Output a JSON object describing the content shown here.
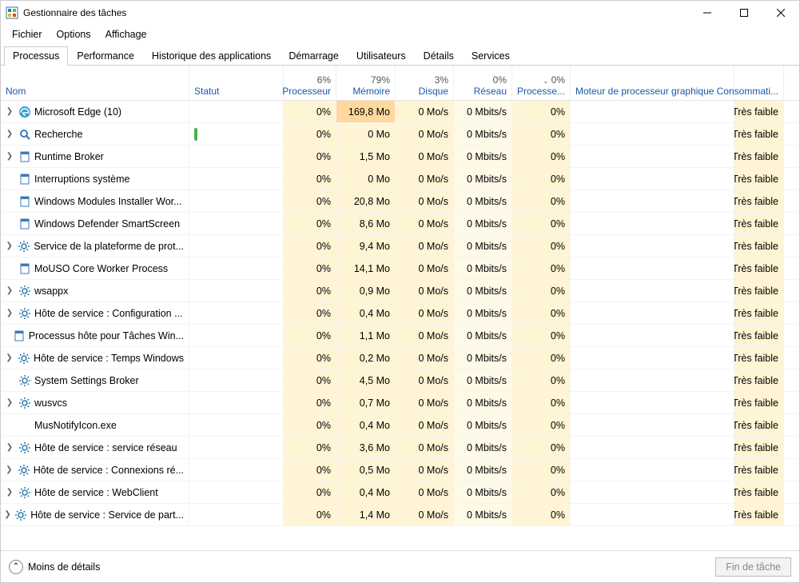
{
  "window": {
    "title": "Gestionnaire des tâches"
  },
  "menu": {
    "file": "Fichier",
    "options": "Options",
    "view": "Affichage"
  },
  "tabs": {
    "processes": "Processus",
    "performance": "Performance",
    "apphistory": "Historique des applications",
    "startup": "Démarrage",
    "users": "Utilisateurs",
    "details": "Détails",
    "services": "Services"
  },
  "columns": {
    "name": "Nom",
    "status": "Statut",
    "cpu": "Processeur",
    "mem": "Mémoire",
    "disk": "Disque",
    "net": "Réseau",
    "proc": "Processe...",
    "gpu": "Moteur de processeur graphique",
    "cons": "Consommati..."
  },
  "header_pct": {
    "cpu": "6%",
    "mem": "79%",
    "disk": "3%",
    "net": "0%",
    "proc": "0%"
  },
  "footer": {
    "less": "Moins de détails",
    "endtask": "Fin de tâche"
  },
  "colors": {
    "heat_low": "#fff9e8",
    "heat_med": "#fff4d4",
    "heat_high": "#ffd89e",
    "link": "#1a5aa8"
  },
  "rows": [
    {
      "exp": true,
      "icon": "edge",
      "name": "Microsoft Edge (10)",
      "status": "",
      "cpu": "0%",
      "mem": "169,8 Mo",
      "mem_heat": "hi",
      "disk": "0 Mo/s",
      "net": "0 Mbits/s",
      "proc": "0%",
      "cons": "Très faible"
    },
    {
      "exp": true,
      "icon": "search",
      "name": "Recherche",
      "status": "leaf",
      "cpu": "0%",
      "mem": "0 Mo",
      "disk": "0 Mo/s",
      "net": "0 Mbits/s",
      "proc": "0%",
      "cons": "Très faible"
    },
    {
      "exp": true,
      "icon": "proc",
      "name": "Runtime Broker",
      "status": "",
      "cpu": "0%",
      "mem": "1,5 Mo",
      "disk": "0 Mo/s",
      "net": "0 Mbits/s",
      "proc": "0%",
      "cons": "Très faible"
    },
    {
      "exp": false,
      "icon": "proc",
      "name": "Interruptions système",
      "status": "",
      "cpu": "0%",
      "mem": "0 Mo",
      "disk": "0 Mo/s",
      "net": "0 Mbits/s",
      "proc": "0%",
      "cons": "Très faible"
    },
    {
      "exp": false,
      "icon": "proc",
      "name": "Windows Modules Installer Wor...",
      "status": "",
      "cpu": "0%",
      "mem": "20,8 Mo",
      "disk": "0 Mo/s",
      "net": "0 Mbits/s",
      "proc": "0%",
      "cons": "Très faible"
    },
    {
      "exp": false,
      "icon": "proc",
      "name": "Windows Defender SmartScreen",
      "status": "",
      "cpu": "0%",
      "mem": "8,6 Mo",
      "disk": "0 Mo/s",
      "net": "0 Mbits/s",
      "proc": "0%",
      "cons": "Très faible"
    },
    {
      "exp": true,
      "icon": "gear",
      "name": "Service de la plateforme de prot...",
      "status": "",
      "cpu": "0%",
      "mem": "9,4 Mo",
      "disk": "0 Mo/s",
      "net": "0 Mbits/s",
      "proc": "0%",
      "cons": "Très faible"
    },
    {
      "exp": false,
      "icon": "proc",
      "name": "MoUSO Core Worker Process",
      "status": "",
      "cpu": "0%",
      "mem": "14,1 Mo",
      "disk": "0 Mo/s",
      "net": "0 Mbits/s",
      "proc": "0%",
      "cons": "Très faible"
    },
    {
      "exp": true,
      "icon": "gear",
      "name": "wsappx",
      "status": "",
      "cpu": "0%",
      "mem": "0,9 Mo",
      "disk": "0 Mo/s",
      "net": "0 Mbits/s",
      "proc": "0%",
      "cons": "Très faible"
    },
    {
      "exp": true,
      "icon": "gear",
      "name": "Hôte de service : Configuration ...",
      "status": "",
      "cpu": "0%",
      "mem": "0,4 Mo",
      "disk": "0 Mo/s",
      "net": "0 Mbits/s",
      "proc": "0%",
      "cons": "Très faible"
    },
    {
      "exp": false,
      "icon": "proc",
      "name": "Processus hôte pour Tâches Win...",
      "status": "",
      "cpu": "0%",
      "mem": "1,1 Mo",
      "disk": "0 Mo/s",
      "net": "0 Mbits/s",
      "proc": "0%",
      "cons": "Très faible"
    },
    {
      "exp": true,
      "icon": "gear",
      "name": "Hôte de service : Temps Windows",
      "status": "",
      "cpu": "0%",
      "mem": "0,2 Mo",
      "disk": "0 Mo/s",
      "net": "0 Mbits/s",
      "proc": "0%",
      "cons": "Très faible"
    },
    {
      "exp": false,
      "icon": "gear",
      "name": "System Settings Broker",
      "status": "",
      "cpu": "0%",
      "mem": "4,5 Mo",
      "disk": "0 Mo/s",
      "net": "0 Mbits/s",
      "proc": "0%",
      "cons": "Très faible"
    },
    {
      "exp": true,
      "icon": "gear",
      "name": "wusvcs",
      "status": "",
      "cpu": "0%",
      "mem": "0,7 Mo",
      "disk": "0 Mo/s",
      "net": "0 Mbits/s",
      "proc": "0%",
      "cons": "Très faible"
    },
    {
      "exp": false,
      "icon": "none",
      "name": "MusNotifyIcon.exe",
      "status": "",
      "cpu": "0%",
      "mem": "0,4 Mo",
      "disk": "0 Mo/s",
      "net": "0 Mbits/s",
      "proc": "0%",
      "cons": "Très faible"
    },
    {
      "exp": true,
      "icon": "gear",
      "name": "Hôte de service : service réseau",
      "status": "",
      "cpu": "0%",
      "mem": "3,6 Mo",
      "disk": "0 Mo/s",
      "net": "0 Mbits/s",
      "proc": "0%",
      "cons": "Très faible"
    },
    {
      "exp": true,
      "icon": "gear",
      "name": "Hôte de service : Connexions ré...",
      "status": "",
      "cpu": "0%",
      "mem": "0,5 Mo",
      "disk": "0 Mo/s",
      "net": "0 Mbits/s",
      "proc": "0%",
      "cons": "Très faible"
    },
    {
      "exp": true,
      "icon": "gear",
      "name": "Hôte de service : WebClient",
      "status": "",
      "cpu": "0%",
      "mem": "0,4 Mo",
      "disk": "0 Mo/s",
      "net": "0 Mbits/s",
      "proc": "0%",
      "cons": "Très faible"
    },
    {
      "exp": true,
      "icon": "gear",
      "name": "Hôte de service : Service de part...",
      "status": "",
      "cpu": "0%",
      "mem": "1,4 Mo",
      "disk": "0 Mo/s",
      "net": "0 Mbits/s",
      "proc": "0%",
      "cons": "Très faible"
    }
  ]
}
